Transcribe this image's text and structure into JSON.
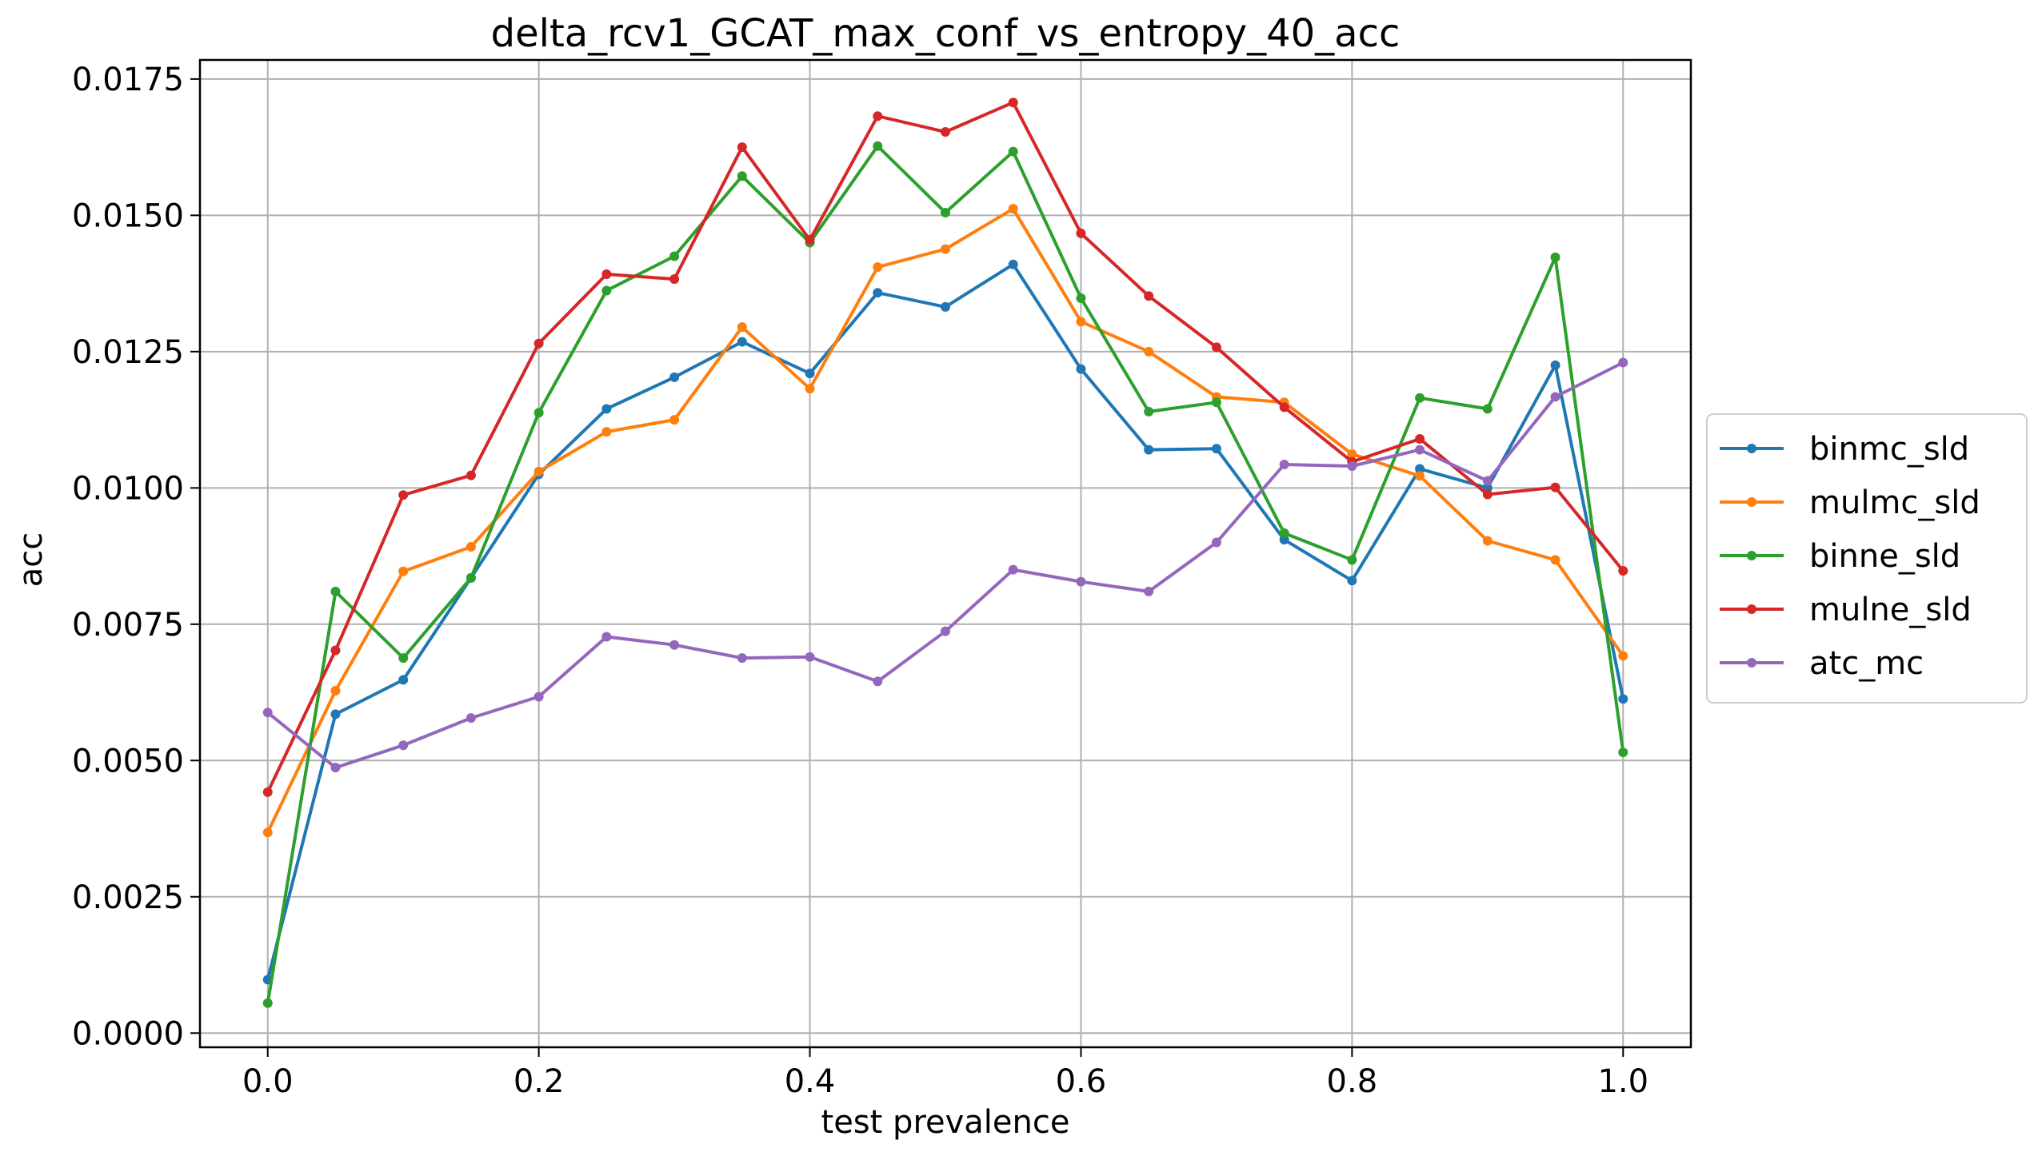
{
  "chart_data": {
    "type": "line",
    "title": "delta_rcv1_GCAT_max_conf_vs_entropy_40_acc",
    "xlabel": "test prevalence",
    "ylabel": "acc",
    "xlim": [
      -0.05,
      1.05
    ],
    "ylim": [
      -0.00026,
      0.01785
    ],
    "xticks": [
      0.0,
      0.2,
      0.4,
      0.6,
      0.8,
      1.0
    ],
    "xtick_labels": [
      "0.0",
      "0.2",
      "0.4",
      "0.6",
      "0.8",
      "1.0"
    ],
    "yticks": [
      0.0,
      0.0025,
      0.005,
      0.0075,
      0.01,
      0.0125,
      0.015,
      0.0175
    ],
    "ytick_labels": [
      "0.0000",
      "0.0025",
      "0.0050",
      "0.0075",
      "0.0100",
      "0.0125",
      "0.0150",
      "0.0175"
    ],
    "grid": true,
    "legend_position": "right, outside plot area",
    "x": [
      0.0,
      0.05,
      0.1,
      0.15,
      0.2,
      0.25,
      0.3,
      0.35,
      0.4,
      0.45,
      0.5,
      0.55,
      0.6,
      0.65,
      0.7,
      0.75,
      0.8,
      0.85,
      0.9,
      0.95,
      1.0
    ],
    "series": [
      {
        "name": "binmc_sld",
        "color": "#1f77b4",
        "values": [
          0.00098,
          0.00585,
          0.00648,
          0.00835,
          0.01025,
          0.01145,
          0.01203,
          0.01268,
          0.0121,
          0.01358,
          0.01332,
          0.0141,
          0.01218,
          0.0107,
          0.01072,
          0.00905,
          0.0083,
          0.01035,
          0.01,
          0.01225,
          0.00613
        ]
      },
      {
        "name": "mulmc_sld",
        "color": "#ff7f0e",
        "values": [
          0.00368,
          0.00628,
          0.00847,
          0.00892,
          0.0103,
          0.01103,
          0.01125,
          0.01295,
          0.01182,
          0.01405,
          0.01438,
          0.01512,
          0.01305,
          0.0125,
          0.01167,
          0.01157,
          0.01062,
          0.01022,
          0.00903,
          0.00868,
          0.00692
        ]
      },
      {
        "name": "binne_sld",
        "color": "#2ca02c",
        "values": [
          0.00055,
          0.0081,
          0.00688,
          0.00835,
          0.01138,
          0.01362,
          0.01425,
          0.01572,
          0.0145,
          0.01627,
          0.01505,
          0.01617,
          0.01348,
          0.0114,
          0.01157,
          0.00917,
          0.00868,
          0.01165,
          0.01145,
          0.01423,
          0.00515
        ]
      },
      {
        "name": "mulne_sld",
        "color": "#d62728",
        "values": [
          0.00442,
          0.00702,
          0.00987,
          0.01023,
          0.01265,
          0.01392,
          0.01383,
          0.01625,
          0.01455,
          0.01682,
          0.01653,
          0.01707,
          0.01467,
          0.01352,
          0.01258,
          0.01148,
          0.01048,
          0.0109,
          0.00988,
          0.01001,
          0.00848
        ]
      },
      {
        "name": "atc_mc",
        "color": "#9467bd",
        "values": [
          0.00588,
          0.00487,
          0.00528,
          0.00578,
          0.00617,
          0.00727,
          0.00712,
          0.00688,
          0.0069,
          0.00645,
          0.00737,
          0.0085,
          0.00828,
          0.0081,
          0.009,
          0.01043,
          0.0104,
          0.0107,
          0.01013,
          0.01167,
          0.0123
        ]
      }
    ]
  }
}
